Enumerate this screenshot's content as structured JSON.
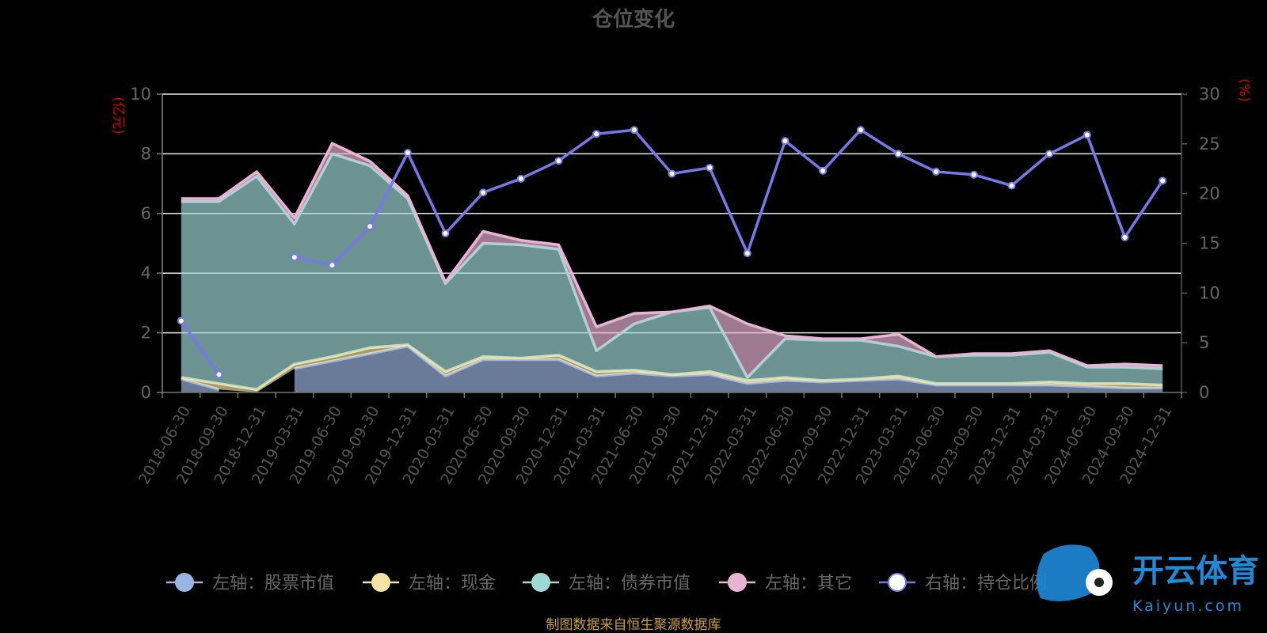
{
  "title": "仓位变化",
  "left_unit": "(亿元)",
  "right_unit": "(%)",
  "source_note": "制图数据来自恒生聚源数据库",
  "watermark": {
    "cn": "开云体育",
    "en": "Kaiyun.com"
  },
  "colors": {
    "stock": "#9bb5e0",
    "cash": "#f5e3a6",
    "bond": "#9fd9d6",
    "other": "#e8b4d4",
    "ratio": "#7878e8",
    "grid": "#e8e8e8"
  },
  "chart_data": {
    "type": "area",
    "title": "仓位变化",
    "categories": [
      "2018-06-30",
      "2018-09-30",
      "2018-12-31",
      "2019-03-31",
      "2019-06-30",
      "2019-09-30",
      "2019-12-31",
      "2020-03-31",
      "2020-06-30",
      "2020-09-30",
      "2020-12-31",
      "2021-03-31",
      "2021-06-30",
      "2021-09-30",
      "2021-12-31",
      "2022-03-31",
      "2022-06-30",
      "2022-09-30",
      "2022-12-31",
      "2023-03-31",
      "2023-06-30",
      "2023-09-30",
      "2023-12-31",
      "2024-03-31",
      "2024-06-30",
      "2024-09-30",
      "2024-12-31"
    ],
    "left_axis": {
      "unit": "(亿元)",
      "ylim": [
        0,
        10
      ],
      "ticks": [
        0,
        2,
        4,
        6,
        8,
        10
      ]
    },
    "right_axis": {
      "unit": "(%)",
      "ylim": [
        0,
        30
      ],
      "ticks": [
        0,
        5,
        10,
        15,
        20,
        25,
        30
      ]
    },
    "grid": true,
    "legend_position": "bottom",
    "series": [
      {
        "name": "左轴：股票市值",
        "axis": "left",
        "kind": "stacked-area",
        "color": "#9bb5e0",
        "values": [
          0.45,
          0.1,
          null,
          0.8,
          1.05,
          1.3,
          1.55,
          0.55,
          1.1,
          1.1,
          1.1,
          0.55,
          0.65,
          0.55,
          0.6,
          0.3,
          0.4,
          0.35,
          0.4,
          0.45,
          0.25,
          0.25,
          0.25,
          0.25,
          0.2,
          0.15,
          0.15
        ]
      },
      {
        "name": "左轴：现金",
        "axis": "left",
        "kind": "stacked-area",
        "color": "#f5e3a6",
        "values": [
          0.05,
          0.2,
          0.1,
          0.15,
          0.15,
          0.2,
          0.05,
          0.15,
          0.1,
          0.05,
          0.15,
          0.15,
          0.1,
          0.05,
          0.1,
          0.1,
          0.1,
          0.05,
          0.05,
          0.1,
          0.05,
          0.05,
          0.05,
          0.1,
          0.1,
          0.15,
          0.1
        ]
      },
      {
        "name": "左轴：债券市值",
        "axis": "left",
        "kind": "stacked-area",
        "color": "#9fd9d6",
        "values": [
          5.9,
          6.1,
          7.15,
          4.7,
          6.8,
          6.1,
          4.9,
          2.95,
          3.8,
          3.8,
          3.55,
          0.7,
          1.55,
          2.1,
          2.15,
          0.1,
          1.3,
          1.35,
          1.3,
          1.0,
          0.9,
          0.95,
          0.95,
          1.0,
          0.55,
          0.55,
          0.55
        ]
      },
      {
        "name": "左轴：其它",
        "axis": "left",
        "kind": "stacked-area",
        "color": "#e8b4d4",
        "values": [
          0.1,
          0.1,
          0.15,
          0.2,
          0.35,
          0.15,
          0.1,
          0.05,
          0.4,
          0.15,
          0.15,
          0.8,
          0.35,
          0.0,
          0.05,
          1.8,
          0.1,
          0.05,
          0.05,
          0.4,
          0.0,
          0.05,
          0.05,
          0.05,
          0.05,
          0.1,
          0.1
        ]
      },
      {
        "name": "右轴：持仓比例",
        "axis": "right",
        "kind": "line",
        "color": "#7878e8",
        "values": [
          7.2,
          1.8,
          null,
          13.6,
          12.8,
          16.7,
          24.1,
          16.0,
          20.1,
          21.5,
          23.3,
          26.0,
          26.4,
          22.0,
          22.6,
          14.0,
          25.3,
          22.3,
          26.4,
          24.0,
          22.2,
          21.9,
          20.8,
          24.0,
          25.9,
          15.6,
          21.3
        ]
      }
    ]
  }
}
